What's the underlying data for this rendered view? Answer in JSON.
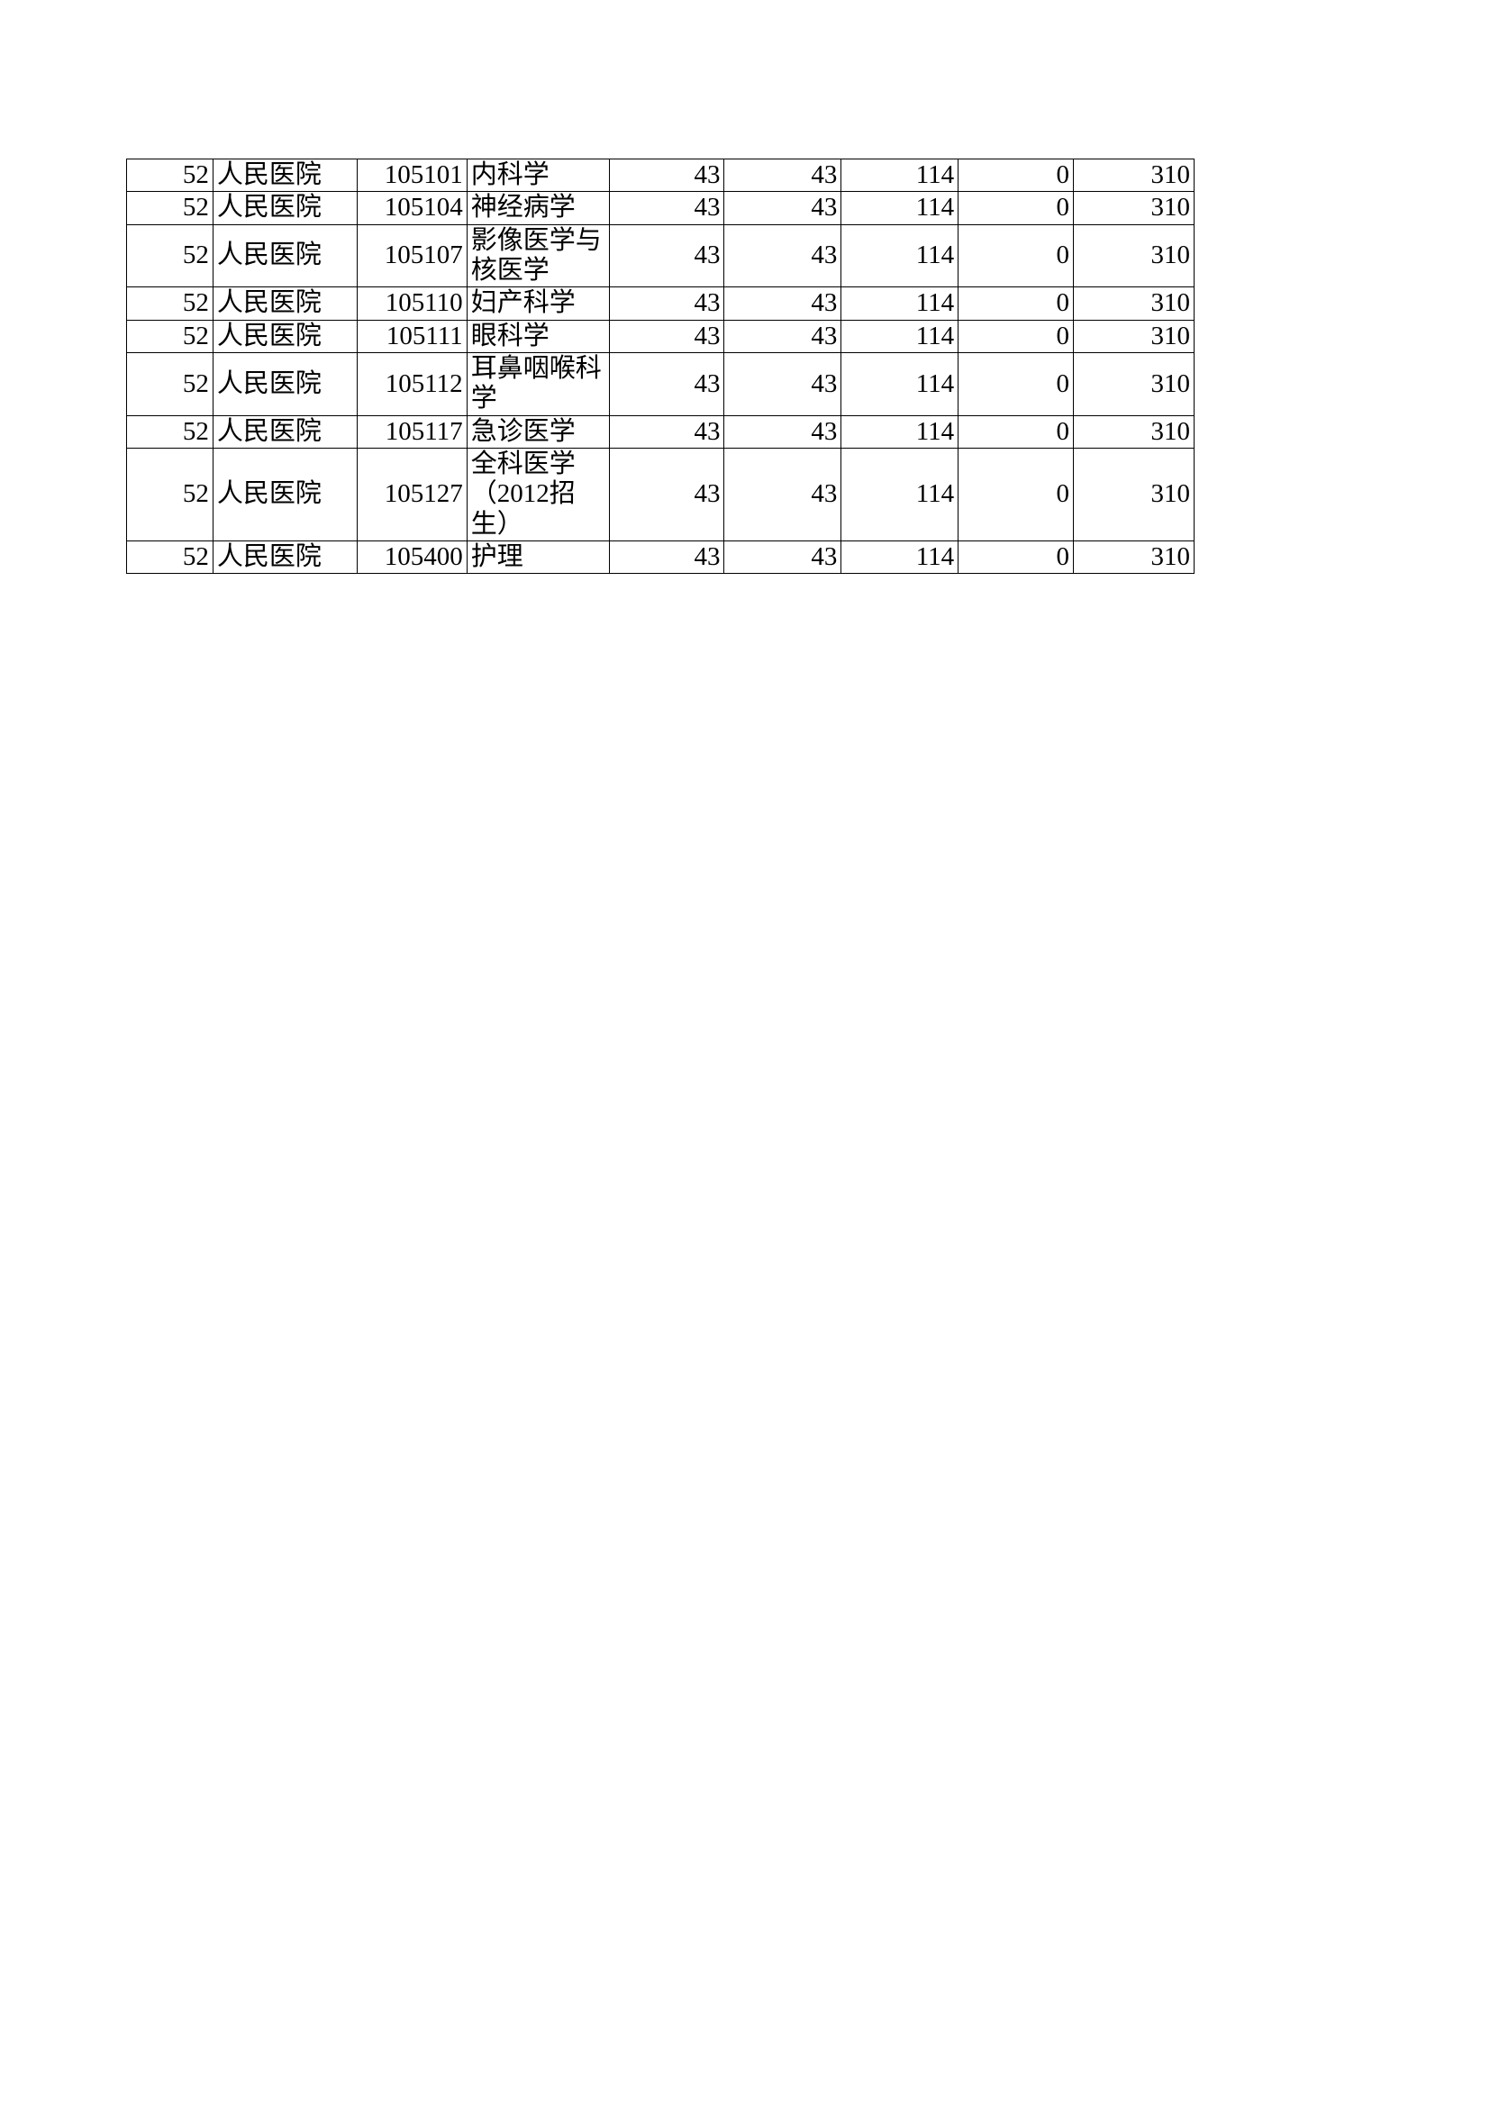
{
  "table": {
    "type": "table",
    "background_color": "#ffffff",
    "border_color": "#000000",
    "text_color": "#000000",
    "font_size": 29,
    "columns": [
      {
        "key": "num1",
        "width": 96,
        "align": "right"
      },
      {
        "key": "hospital",
        "width": 160,
        "align": "left"
      },
      {
        "key": "code",
        "width": 122,
        "align": "right"
      },
      {
        "key": "subject",
        "width": 158,
        "align": "left"
      },
      {
        "key": "val1",
        "width": 128,
        "align": "right"
      },
      {
        "key": "val2",
        "width": 130,
        "align": "right"
      },
      {
        "key": "val3",
        "width": 130,
        "align": "right"
      },
      {
        "key": "val4",
        "width": 128,
        "align": "right"
      },
      {
        "key": "val5",
        "width": 134,
        "align": "right"
      }
    ],
    "rows": [
      {
        "num1": "52",
        "hospital": "人民医院",
        "code": "105101",
        "subject": "内科学",
        "val1": "43",
        "val2": "43",
        "val3": "114",
        "val4": "0",
        "val5": "310"
      },
      {
        "num1": "52",
        "hospital": "人民医院",
        "code": "105104",
        "subject": "神经病学",
        "val1": "43",
        "val2": "43",
        "val3": "114",
        "val4": "0",
        "val5": "310"
      },
      {
        "num1": "52",
        "hospital": "人民医院",
        "code": "105107",
        "subject": "影像医学与核医学",
        "val1": "43",
        "val2": "43",
        "val3": "114",
        "val4": "0",
        "val5": "310"
      },
      {
        "num1": "52",
        "hospital": "人民医院",
        "code": "105110",
        "subject": "妇产科学",
        "val1": "43",
        "val2": "43",
        "val3": "114",
        "val4": "0",
        "val5": "310"
      },
      {
        "num1": "52",
        "hospital": "人民医院",
        "code": "105111",
        "subject": "眼科学",
        "val1": "43",
        "val2": "43",
        "val3": "114",
        "val4": "0",
        "val5": "310"
      },
      {
        "num1": "52",
        "hospital": "人民医院",
        "code": "105112",
        "subject": "耳鼻咽喉科学",
        "val1": "43",
        "val2": "43",
        "val3": "114",
        "val4": "0",
        "val5": "310"
      },
      {
        "num1": "52",
        "hospital": "人民医院",
        "code": "105117",
        "subject": "急诊医学",
        "val1": "43",
        "val2": "43",
        "val3": "114",
        "val4": "0",
        "val5": "310"
      },
      {
        "num1": "52",
        "hospital": "人民医院",
        "code": "105127",
        "subject": "全科医学（2012招生）",
        "val1": "43",
        "val2": "43",
        "val3": "114",
        "val4": "0",
        "val5": "310"
      },
      {
        "num1": "52",
        "hospital": "人民医院",
        "code": "105400",
        "subject": "护理",
        "val1": "43",
        "val2": "43",
        "val3": "114",
        "val4": "0",
        "val5": "310"
      }
    ]
  }
}
